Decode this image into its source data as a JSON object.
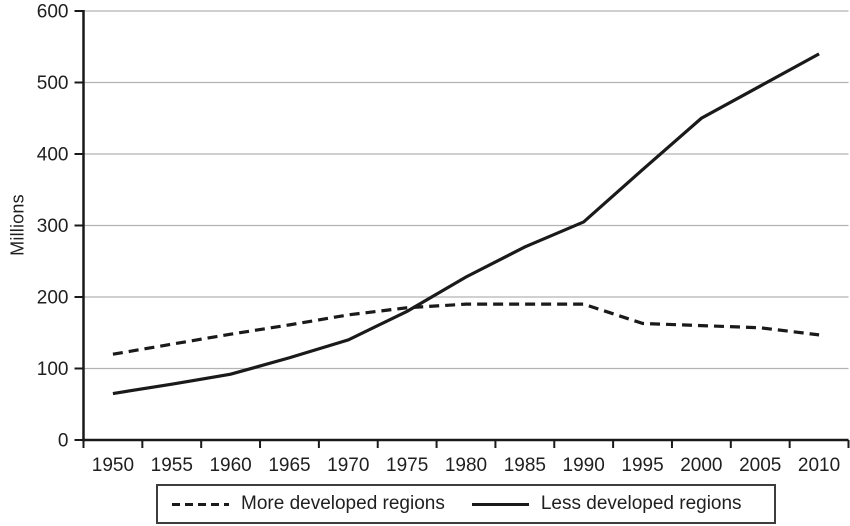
{
  "chart_data": {
    "type": "line",
    "title": "",
    "xlabel": "",
    "ylabel": "Millions",
    "ylim": [
      0,
      600
    ],
    "yticks": [
      0,
      100,
      200,
      300,
      400,
      500,
      600
    ],
    "grid": "horizontal gridlines at each 100",
    "legend_position": "bottom, boxed",
    "categories": [
      "1950",
      "1955",
      "1960",
      "1965",
      "1970",
      "1975",
      "1980",
      "1985",
      "1990",
      "1995",
      "2000",
      "2005",
      "2010"
    ],
    "series": [
      {
        "name": "More developed regions",
        "style": "dashed",
        "values": [
          120,
          134,
          148,
          161,
          175,
          185,
          190,
          190,
          190,
          163,
          160,
          157,
          147
        ]
      },
      {
        "name": "Less developed regions",
        "style": "solid",
        "values": [
          65,
          78,
          92,
          115,
          140,
          180,
          228,
          270,
          305,
          378,
          450,
          495,
          540
        ]
      }
    ],
    "colors": {
      "line": "#1a1a1a",
      "grid": "#b3b3b3",
      "axis": "#1a1a1a",
      "background": "#ffffff"
    }
  }
}
